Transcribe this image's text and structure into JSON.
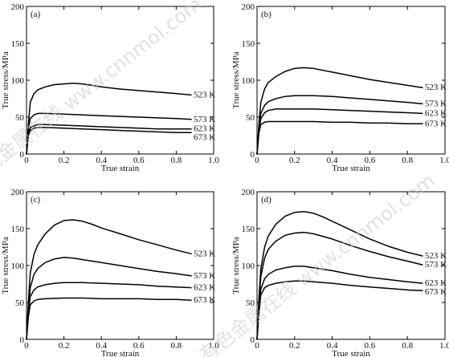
{
  "watermark": "有色金属在线 www.cnnmol.com",
  "chart_data": [
    {
      "type": "line",
      "panel_label": "(a)",
      "xlabel": "True strain",
      "ylabel": "True stress/MPa",
      "xlim": [
        0,
        1.0
      ],
      "ylim": [
        0,
        200
      ],
      "x_ticks": [
        "0",
        "0.2",
        "0.4",
        "0.6",
        "0.8",
        "1.0"
      ],
      "y_ticks": [
        "0",
        "50",
        "100",
        "150",
        "200"
      ],
      "series": [
        {
          "name": "523 K",
          "x": [
            0,
            0.01,
            0.02,
            0.04,
            0.06,
            0.1,
            0.15,
            0.2,
            0.25,
            0.3,
            0.35,
            0.4,
            0.5,
            0.6,
            0.7,
            0.8,
            0.88
          ],
          "y": [
            0,
            40,
            70,
            82,
            87,
            91,
            94,
            95,
            96,
            95,
            93,
            91,
            88,
            86,
            84,
            82,
            80
          ]
        },
        {
          "name": "573 K",
          "x": [
            0,
            0.01,
            0.02,
            0.04,
            0.06,
            0.1,
            0.2,
            0.3,
            0.4,
            0.5,
            0.6,
            0.7,
            0.8,
            0.88
          ],
          "y": [
            0,
            35,
            48,
            53,
            55,
            55,
            54,
            53,
            52,
            51,
            50,
            49,
            48,
            47
          ]
        },
        {
          "name": "623 K",
          "x": [
            0,
            0.01,
            0.02,
            0.04,
            0.06,
            0.1,
            0.2,
            0.3,
            0.4,
            0.5,
            0.6,
            0.7,
            0.8,
            0.88
          ],
          "y": [
            0,
            28,
            36,
            38,
            40,
            40,
            39,
            38,
            37,
            36,
            35,
            34,
            34,
            34
          ]
        },
        {
          "name": "673 K",
          "x": [
            0,
            0.01,
            0.02,
            0.04,
            0.06,
            0.1,
            0.2,
            0.3,
            0.4,
            0.5,
            0.6,
            0.7,
            0.8,
            0.88
          ],
          "y": [
            0,
            25,
            32,
            35,
            36,
            36,
            35,
            34,
            33,
            32,
            31,
            30,
            29,
            29
          ]
        }
      ]
    },
    {
      "type": "line",
      "panel_label": "(b)",
      "xlabel": "True strain",
      "ylabel": "True stress/MPa",
      "xlim": [
        0,
        1.0
      ],
      "ylim": [
        0,
        200
      ],
      "x_ticks": [
        "0",
        "0.2",
        "0.4",
        "0.6",
        "0.8",
        "1.0"
      ],
      "y_ticks": [
        "0",
        "50",
        "100",
        "150",
        "200"
      ],
      "series": [
        {
          "name": "523 K",
          "x": [
            0,
            0.01,
            0.02,
            0.04,
            0.06,
            0.1,
            0.15,
            0.2,
            0.25,
            0.3,
            0.4,
            0.5,
            0.6,
            0.7,
            0.8,
            0.88
          ],
          "y": [
            0,
            40,
            70,
            88,
            97,
            105,
            112,
            116,
            117,
            116,
            111,
            106,
            101,
            97,
            93,
            90
          ]
        },
        {
          "name": "573 K",
          "x": [
            0,
            0.01,
            0.02,
            0.04,
            0.06,
            0.1,
            0.15,
            0.2,
            0.3,
            0.4,
            0.5,
            0.6,
            0.7,
            0.8,
            0.88
          ],
          "y": [
            0,
            35,
            55,
            66,
            71,
            75,
            78,
            79,
            79,
            78,
            76,
            74,
            72,
            70,
            68
          ]
        },
        {
          "name": "623 K",
          "x": [
            0,
            0.01,
            0.02,
            0.04,
            0.06,
            0.1,
            0.15,
            0.2,
            0.3,
            0.4,
            0.5,
            0.6,
            0.7,
            0.8,
            0.88
          ],
          "y": [
            0,
            30,
            48,
            56,
            59,
            61,
            61,
            61,
            61,
            60,
            59,
            58,
            57,
            56,
            55
          ]
        },
        {
          "name": "673 K",
          "x": [
            0,
            0.01,
            0.02,
            0.04,
            0.06,
            0.1,
            0.2,
            0.3,
            0.4,
            0.5,
            0.6,
            0.7,
            0.8,
            0.88
          ],
          "y": [
            0,
            28,
            40,
            43,
            44,
            44,
            44,
            44,
            43,
            43,
            42,
            42,
            41,
            41
          ]
        }
      ]
    },
    {
      "type": "line",
      "panel_label": "(c)",
      "xlabel": "True strain",
      "ylabel": "True stress/MPa",
      "xlim": [
        0,
        1.0
      ],
      "ylim": [
        0,
        200
      ],
      "x_ticks": [
        "0",
        "0.2",
        "0.4",
        "0.6",
        "0.8",
        "1.0"
      ],
      "y_ticks": [
        "0",
        "50",
        "100",
        "150",
        "200"
      ],
      "series": [
        {
          "name": "523 K",
          "x": [
            0,
            0.01,
            0.02,
            0.04,
            0.06,
            0.1,
            0.15,
            0.2,
            0.25,
            0.3,
            0.35,
            0.4,
            0.5,
            0.6,
            0.7,
            0.8,
            0.88
          ],
          "y": [
            0,
            50,
            90,
            115,
            128,
            143,
            155,
            161,
            162,
            160,
            156,
            151,
            143,
            135,
            128,
            121,
            116
          ]
        },
        {
          "name": "573 K",
          "x": [
            0,
            0.01,
            0.02,
            0.04,
            0.06,
            0.1,
            0.15,
            0.2,
            0.25,
            0.3,
            0.4,
            0.5,
            0.6,
            0.7,
            0.8,
            0.88
          ],
          "y": [
            0,
            40,
            70,
            88,
            96,
            104,
            109,
            111,
            110,
            108,
            104,
            100,
            96,
            92,
            89,
            86
          ]
        },
        {
          "name": "623 K",
          "x": [
            0,
            0.01,
            0.02,
            0.04,
            0.06,
            0.1,
            0.15,
            0.2,
            0.3,
            0.4,
            0.5,
            0.6,
            0.7,
            0.8,
            0.88
          ],
          "y": [
            0,
            35,
            58,
            67,
            71,
            74,
            76,
            77,
            77,
            76,
            75,
            74,
            72,
            71,
            70
          ]
        },
        {
          "name": "673 K",
          "x": [
            0,
            0.01,
            0.02,
            0.04,
            0.06,
            0.1,
            0.2,
            0.3,
            0.4,
            0.5,
            0.6,
            0.7,
            0.8,
            0.88
          ],
          "y": [
            0,
            30,
            47,
            52,
            54,
            55,
            56,
            56,
            55,
            55,
            55,
            54,
            54,
            53
          ]
        }
      ]
    },
    {
      "type": "line",
      "panel_label": "(d)",
      "xlabel": "True strain",
      "ylabel": "True stress/MPa",
      "xlim": [
        0,
        1.0
      ],
      "ylim": [
        0,
        200
      ],
      "x_ticks": [
        "0",
        "0.2",
        "0.4",
        "0.6",
        "0.8",
        "1.0"
      ],
      "y_ticks": [
        "0",
        "50",
        "100",
        "150",
        "200"
      ],
      "series": [
        {
          "name": "523 K",
          "x": [
            0,
            0.01,
            0.02,
            0.04,
            0.06,
            0.1,
            0.15,
            0.2,
            0.25,
            0.3,
            0.35,
            0.4,
            0.5,
            0.6,
            0.7,
            0.8,
            0.88
          ],
          "y": [
            0,
            55,
            95,
            125,
            140,
            156,
            167,
            172,
            173,
            171,
            166,
            160,
            148,
            136,
            126,
            118,
            113
          ]
        },
        {
          "name": "573 K",
          "x": [
            0,
            0.01,
            0.02,
            0.04,
            0.06,
            0.1,
            0.15,
            0.2,
            0.25,
            0.3,
            0.4,
            0.5,
            0.6,
            0.7,
            0.8,
            0.88
          ],
          "y": [
            0,
            50,
            85,
            110,
            122,
            133,
            141,
            144,
            145,
            143,
            136,
            127,
            119,
            112,
            106,
            101
          ]
        },
        {
          "name": "623 K",
          "x": [
            0,
            0.01,
            0.02,
            0.04,
            0.06,
            0.1,
            0.15,
            0.2,
            0.25,
            0.3,
            0.4,
            0.5,
            0.6,
            0.7,
            0.8,
            0.88
          ],
          "y": [
            0,
            40,
            68,
            82,
            88,
            94,
            97,
            99,
            99,
            97,
            93,
            88,
            84,
            81,
            78,
            76
          ]
        },
        {
          "name": "673 K",
          "x": [
            0,
            0.01,
            0.02,
            0.04,
            0.06,
            0.1,
            0.15,
            0.2,
            0.25,
            0.3,
            0.4,
            0.5,
            0.6,
            0.7,
            0.8,
            0.88
          ],
          "y": [
            0,
            35,
            60,
            70,
            73,
            76,
            78,
            79,
            79,
            78,
            76,
            73,
            71,
            69,
            67,
            66
          ]
        }
      ]
    }
  ]
}
